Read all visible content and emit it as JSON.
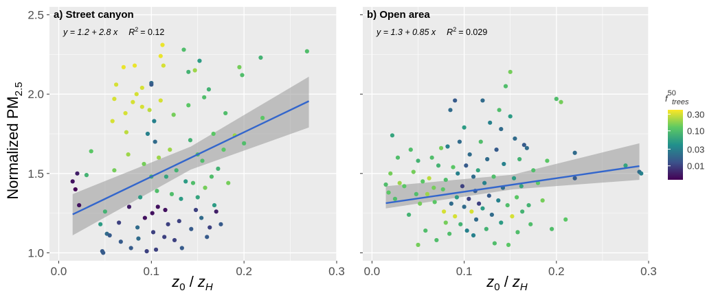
{
  "chart_data": [
    {
      "type": "scatter",
      "title": "a) Street canyon",
      "xlabel": "z0 / zH",
      "ylabel": "Normalized PM2.5",
      "xlim": [
        -0.01,
        0.3
      ],
      "ylim": [
        0.95,
        2.55
      ],
      "xticks": [
        "0.0",
        "0.1",
        "0.2",
        "0.3"
      ],
      "yticks": [
        "1.0",
        "1.5",
        "2.0",
        "2.5"
      ],
      "grid": true,
      "annotation": {
        "equation": "y = 1.2 + 2.8 x",
        "r2_label": "R",
        "r2_value": "= 0.12"
      },
      "fit": {
        "intercept": 1.2,
        "slope": 2.8,
        "x_range": [
          0.015,
          0.27
        ],
        "ci_low": [
          1.11,
          1.79
        ],
        "ci_high": [
          1.37,
          2.11
        ]
      },
      "points": [
        {
          "x": 0.015,
          "y": 1.45,
          "f": 0.005
        },
        {
          "x": 0.018,
          "y": 1.4,
          "f": 0.004
        },
        {
          "x": 0.02,
          "y": 1.5,
          "f": 0.006
        },
        {
          "x": 0.022,
          "y": 1.3,
          "f": 0.005
        },
        {
          "x": 0.03,
          "y": 1.49,
          "f": 0.08
        },
        {
          "x": 0.035,
          "y": 1.64,
          "f": 0.12
        },
        {
          "x": 0.045,
          "y": 1.18,
          "f": 0.05
        },
        {
          "x": 0.047,
          "y": 1.01,
          "f": 0.015
        },
        {
          "x": 0.048,
          "y": 1.0,
          "f": 0.015
        },
        {
          "x": 0.05,
          "y": 1.26,
          "f": 0.08
        },
        {
          "x": 0.052,
          "y": 1.12,
          "f": 0.02
        },
        {
          "x": 0.055,
          "y": 1.11,
          "f": 0.015
        },
        {
          "x": 0.058,
          "y": 1.83,
          "f": 0.3
        },
        {
          "x": 0.06,
          "y": 1.97,
          "f": 0.3
        },
        {
          "x": 0.062,
          "y": 2.06,
          "f": 0.3
        },
        {
          "x": 0.06,
          "y": 1.52,
          "f": 0.15
        },
        {
          "x": 0.065,
          "y": 1.19,
          "f": 0.01
        },
        {
          "x": 0.067,
          "y": 1.07,
          "f": 0.015
        },
        {
          "x": 0.07,
          "y": 2.17,
          "f": 0.35
        },
        {
          "x": 0.072,
          "y": 1.88,
          "f": 0.3
        },
        {
          "x": 0.073,
          "y": 1.76,
          "f": 0.25
        },
        {
          "x": 0.075,
          "y": 1.62,
          "f": 0.2
        },
        {
          "x": 0.076,
          "y": 1.29,
          "f": 0.006
        },
        {
          "x": 0.078,
          "y": 1.03,
          "f": 0.015
        },
        {
          "x": 0.08,
          "y": 1.95,
          "f": 0.3
        },
        {
          "x": 0.082,
          "y": 2.18,
          "f": 0.35
        },
        {
          "x": 0.084,
          "y": 2.0,
          "f": 0.3
        },
        {
          "x": 0.085,
          "y": 1.16,
          "f": 0.02
        },
        {
          "x": 0.086,
          "y": 1.09,
          "f": 0.02
        },
        {
          "x": 0.088,
          "y": 1.35,
          "f": 0.05
        },
        {
          "x": 0.09,
          "y": 1.92,
          "f": 0.3
        },
        {
          "x": 0.09,
          "y": 2.04,
          "f": 0.3
        },
        {
          "x": 0.092,
          "y": 1.56,
          "f": 0.15
        },
        {
          "x": 0.093,
          "y": 1.22,
          "f": 0.005
        },
        {
          "x": 0.095,
          "y": 1.01,
          "f": 0.01
        },
        {
          "x": 0.096,
          "y": 1.75,
          "f": 0.03
        },
        {
          "x": 0.098,
          "y": 1.9,
          "f": 0.25
        },
        {
          "x": 0.1,
          "y": 2.07,
          "f": 0.02
        },
        {
          "x": 0.1,
          "y": 2.06,
          "f": 0.015
        },
        {
          "x": 0.1,
          "y": 1.48,
          "f": 0.08
        },
        {
          "x": 0.101,
          "y": 1.25,
          "f": 0.005
        },
        {
          "x": 0.102,
          "y": 1.13,
          "f": 0.01
        },
        {
          "x": 0.103,
          "y": 1.83,
          "f": 0.03
        },
        {
          "x": 0.104,
          "y": 1.7,
          "f": 0.02
        },
        {
          "x": 0.105,
          "y": 1.02,
          "f": 0.01
        },
        {
          "x": 0.106,
          "y": 1.39,
          "f": 0.1
        },
        {
          "x": 0.107,
          "y": 1.29,
          "f": 0.005
        },
        {
          "x": 0.108,
          "y": 1.6,
          "f": 0.2
        },
        {
          "x": 0.11,
          "y": 2.24,
          "f": 0.35
        },
        {
          "x": 0.11,
          "y": 1.96,
          "f": 0.3
        },
        {
          "x": 0.112,
          "y": 2.31,
          "f": 0.35
        },
        {
          "x": 0.113,
          "y": 2.18,
          "f": 0.3
        },
        {
          "x": 0.114,
          "y": 1.1,
          "f": 0.01
        },
        {
          "x": 0.115,
          "y": 1.27,
          "f": 0.005
        },
        {
          "x": 0.116,
          "y": 1.48,
          "f": 0.06
        },
        {
          "x": 0.118,
          "y": 1.18,
          "f": 0.01
        },
        {
          "x": 0.12,
          "y": 1.65,
          "f": 0.2
        },
        {
          "x": 0.122,
          "y": 1.37,
          "f": 0.1
        },
        {
          "x": 0.124,
          "y": 1.87,
          "f": 0.15
        },
        {
          "x": 0.125,
          "y": 1.08,
          "f": 0.01
        },
        {
          "x": 0.127,
          "y": 1.52,
          "f": 0.08
        },
        {
          "x": 0.13,
          "y": 1.2,
          "f": 0.01
        },
        {
          "x": 0.132,
          "y": 1.34,
          "f": 0.05
        },
        {
          "x": 0.133,
          "y": 1.03,
          "f": 0.015
        },
        {
          "x": 0.135,
          "y": 2.28,
          "f": 0.1
        },
        {
          "x": 0.137,
          "y": 1.45,
          "f": 0.05
        },
        {
          "x": 0.14,
          "y": 2.14,
          "f": 0.08
        },
        {
          "x": 0.14,
          "y": 1.93,
          "f": 0.12
        },
        {
          "x": 0.142,
          "y": 1.71,
          "f": 0.08
        },
        {
          "x": 0.143,
          "y": 1.15,
          "f": 0.015
        },
        {
          "x": 0.145,
          "y": 1.44,
          "f": 0.1
        },
        {
          "x": 0.147,
          "y": 2.15,
          "f": 0.2
        },
        {
          "x": 0.148,
          "y": 1.27,
          "f": 0.01
        },
        {
          "x": 0.15,
          "y": 1.62,
          "f": 0.1
        },
        {
          "x": 0.15,
          "y": 1.35,
          "f": 0.06
        },
        {
          "x": 0.152,
          "y": 2.21,
          "f": 0.05
        },
        {
          "x": 0.154,
          "y": 1.22,
          "f": 0.02
        },
        {
          "x": 0.155,
          "y": 1.58,
          "f": 0.1
        },
        {
          "x": 0.157,
          "y": 1.98,
          "f": 0.1
        },
        {
          "x": 0.158,
          "y": 1.41,
          "f": 0.15
        },
        {
          "x": 0.16,
          "y": 1.1,
          "f": 0.015
        },
        {
          "x": 0.162,
          "y": 2.03,
          "f": 0.08
        },
        {
          "x": 0.163,
          "y": 1.16,
          "f": 0.01
        },
        {
          "x": 0.165,
          "y": 1.48,
          "f": 0.1
        },
        {
          "x": 0.167,
          "y": 1.75,
          "f": 0.12
        },
        {
          "x": 0.168,
          "y": 1.3,
          "f": 0.05
        },
        {
          "x": 0.17,
          "y": 1.26,
          "f": 0.006
        },
        {
          "x": 0.172,
          "y": 1.53,
          "f": 0.08
        },
        {
          "x": 0.175,
          "y": 1.18,
          "f": 0.015
        },
        {
          "x": 0.178,
          "y": 1.65,
          "f": 0.12
        },
        {
          "x": 0.18,
          "y": 1.88,
          "f": 0.1
        },
        {
          "x": 0.183,
          "y": 1.44,
          "f": 0.15
        },
        {
          "x": 0.19,
          "y": 1.74,
          "f": 0.2
        },
        {
          "x": 0.195,
          "y": 2.17,
          "f": 0.15
        },
        {
          "x": 0.198,
          "y": 2.12,
          "f": 0.1
        },
        {
          "x": 0.2,
          "y": 1.69,
          "f": 0.1
        },
        {
          "x": 0.218,
          "y": 2.23,
          "f": 0.08
        },
        {
          "x": 0.22,
          "y": 1.85,
          "f": 0.12
        },
        {
          "x": 0.268,
          "y": 2.27,
          "f": 0.1
        }
      ]
    },
    {
      "type": "scatter",
      "title": "b) Open area",
      "xlabel": "z0 / zH",
      "ylabel": "",
      "xlim": [
        -0.01,
        0.3
      ],
      "ylim": [
        0.95,
        2.55
      ],
      "xticks": [
        "0.0",
        "0.1",
        "0.2",
        "0.3"
      ],
      "yticks": [
        "",
        "",
        "",
        ""
      ],
      "grid": true,
      "annotation": {
        "equation": "y = 1.3 + 0.85 x",
        "r2_label": "R",
        "r2_value": "= 0.029"
      },
      "fit": {
        "intercept": 1.3,
        "slope": 0.85,
        "x_range": [
          0.015,
          0.29
        ],
        "ci_low": [
          1.28,
          1.46
        ],
        "ci_high": [
          1.42,
          1.69
        ]
      },
      "points": [
        {
          "x": 0.015,
          "y": 1.43,
          "f": 0.1
        },
        {
          "x": 0.018,
          "y": 1.38,
          "f": 0.12
        },
        {
          "x": 0.02,
          "y": 1.5,
          "f": 0.15
        },
        {
          "x": 0.022,
          "y": 1.74,
          "f": 0.06
        },
        {
          "x": 0.025,
          "y": 1.34,
          "f": 0.1
        },
        {
          "x": 0.028,
          "y": 1.6,
          "f": 0.1
        },
        {
          "x": 0.03,
          "y": 1.44,
          "f": 0.2
        },
        {
          "x": 0.035,
          "y": 1.42,
          "f": 0.12
        },
        {
          "x": 0.04,
          "y": 1.24,
          "f": 0.08
        },
        {
          "x": 0.042,
          "y": 1.65,
          "f": 0.1
        },
        {
          "x": 0.045,
          "y": 1.51,
          "f": 0.15
        },
        {
          "x": 0.048,
          "y": 1.37,
          "f": 0.1
        },
        {
          "x": 0.05,
          "y": 1.58,
          "f": 0.08
        },
        {
          "x": 0.052,
          "y": 1.31,
          "f": 0.15
        },
        {
          "x": 0.055,
          "y": 1.45,
          "f": 0.12
        },
        {
          "x": 0.058,
          "y": 1.14,
          "f": 0.1
        },
        {
          "x": 0.05,
          "y": 1.05,
          "f": 0.15
        },
        {
          "x": 0.06,
          "y": 1.37,
          "f": 0.2
        },
        {
          "x": 0.062,
          "y": 1.47,
          "f": 0.25
        },
        {
          "x": 0.065,
          "y": 1.6,
          "f": 0.1
        },
        {
          "x": 0.067,
          "y": 1.41,
          "f": 0.15
        },
        {
          "x": 0.068,
          "y": 1.32,
          "f": 0.12
        },
        {
          "x": 0.07,
          "y": 1.08,
          "f": 0.1
        },
        {
          "x": 0.072,
          "y": 1.55,
          "f": 0.08
        },
        {
          "x": 0.075,
          "y": 1.66,
          "f": 0.15
        },
        {
          "x": 0.077,
          "y": 1.4,
          "f": 0.12
        },
        {
          "x": 0.078,
          "y": 1.26,
          "f": 0.3
        },
        {
          "x": 0.08,
          "y": 1.46,
          "f": 0.1
        },
        {
          "x": 0.08,
          "y": 1.19,
          "f": 0.15
        },
        {
          "x": 0.082,
          "y": 1.67,
          "f": 0.03
        },
        {
          "x": 0.084,
          "y": 1.12,
          "f": 0.1
        },
        {
          "x": 0.085,
          "y": 1.9,
          "f": 0.02
        },
        {
          "x": 0.086,
          "y": 1.31,
          "f": 0.02
        },
        {
          "x": 0.088,
          "y": 1.54,
          "f": 0.12
        },
        {
          "x": 0.09,
          "y": 1.96,
          "f": 0.015
        },
        {
          "x": 0.09,
          "y": 1.23,
          "f": 0.3
        },
        {
          "x": 0.092,
          "y": 1.35,
          "f": 0.05
        },
        {
          "x": 0.093,
          "y": 1.5,
          "f": 0.03
        },
        {
          "x": 0.095,
          "y": 1.7,
          "f": 0.02
        },
        {
          "x": 0.096,
          "y": 1.18,
          "f": 0.08
        },
        {
          "x": 0.098,
          "y": 1.42,
          "f": 0.01
        },
        {
          "x": 0.1,
          "y": 1.29,
          "f": 0.02
        },
        {
          "x": 0.1,
          "y": 1.79,
          "f": 0.05
        },
        {
          "x": 0.102,
          "y": 1.55,
          "f": 0.015
        },
        {
          "x": 0.103,
          "y": 1.14,
          "f": 0.03
        },
        {
          "x": 0.105,
          "y": 1.34,
          "f": 0.01
        },
        {
          "x": 0.106,
          "y": 1.62,
          "f": 0.02
        },
        {
          "x": 0.108,
          "y": 1.26,
          "f": 0.3
        },
        {
          "x": 0.11,
          "y": 1.48,
          "f": 0.02
        },
        {
          "x": 0.11,
          "y": 1.11,
          "f": 0.03
        },
        {
          "x": 0.112,
          "y": 1.39,
          "f": 0.015
        },
        {
          "x": 0.113,
          "y": 1.21,
          "f": 0.02
        },
        {
          "x": 0.115,
          "y": 1.52,
          "f": 0.06
        },
        {
          "x": 0.116,
          "y": 1.31,
          "f": 0.01
        },
        {
          "x": 0.118,
          "y": 1.7,
          "f": 0.1
        },
        {
          "x": 0.12,
          "y": 1.96,
          "f": 0.02
        },
        {
          "x": 0.12,
          "y": 1.28,
          "f": 0.05
        },
        {
          "x": 0.122,
          "y": 1.44,
          "f": 0.03
        },
        {
          "x": 0.124,
          "y": 1.15,
          "f": 0.08
        },
        {
          "x": 0.125,
          "y": 1.59,
          "f": 0.02
        },
        {
          "x": 0.127,
          "y": 1.36,
          "f": 0.015
        },
        {
          "x": 0.128,
          "y": 1.82,
          "f": 0.03
        },
        {
          "x": 0.13,
          "y": 1.24,
          "f": 0.02
        },
        {
          "x": 0.132,
          "y": 1.48,
          "f": 0.1
        },
        {
          "x": 0.133,
          "y": 1.06,
          "f": 0.1
        },
        {
          "x": 0.135,
          "y": 1.65,
          "f": 0.015
        },
        {
          "x": 0.137,
          "y": 1.33,
          "f": 0.03
        },
        {
          "x": 0.138,
          "y": 1.9,
          "f": 0.1
        },
        {
          "x": 0.14,
          "y": 1.78,
          "f": 0.02
        },
        {
          "x": 0.14,
          "y": 1.19,
          "f": 0.05
        },
        {
          "x": 0.142,
          "y": 1.41,
          "f": 0.02
        },
        {
          "x": 0.143,
          "y": 1.56,
          "f": 0.03
        },
        {
          "x": 0.145,
          "y": 2.05,
          "f": 0.1
        },
        {
          "x": 0.147,
          "y": 1.3,
          "f": 0.1
        },
        {
          "x": 0.148,
          "y": 1.05,
          "f": 0.12
        },
        {
          "x": 0.15,
          "y": 1.86,
          "f": 0.05
        },
        {
          "x": 0.15,
          "y": 2.14,
          "f": 0.15
        },
        {
          "x": 0.152,
          "y": 1.23,
          "f": 0.3
        },
        {
          "x": 0.154,
          "y": 1.47,
          "f": 0.05
        },
        {
          "x": 0.155,
          "y": 1.72,
          "f": 0.02
        },
        {
          "x": 0.157,
          "y": 1.35,
          "f": 0.12
        },
        {
          "x": 0.158,
          "y": 1.13,
          "f": 0.1
        },
        {
          "x": 0.16,
          "y": 1.59,
          "f": 0.08
        },
        {
          "x": 0.162,
          "y": 1.42,
          "f": 0.06
        },
        {
          "x": 0.163,
          "y": 1.26,
          "f": 0.08
        },
        {
          "x": 0.165,
          "y": 1.68,
          "f": 0.015
        },
        {
          "x": 0.168,
          "y": 1.66,
          "f": 0.02
        },
        {
          "x": 0.17,
          "y": 1.3,
          "f": 0.08
        },
        {
          "x": 0.172,
          "y": 1.18,
          "f": 0.1
        },
        {
          "x": 0.175,
          "y": 1.52,
          "f": 0.1
        },
        {
          "x": 0.18,
          "y": 1.44,
          "f": 0.12
        },
        {
          "x": 0.185,
          "y": 1.33,
          "f": 0.15
        },
        {
          "x": 0.19,
          "y": 1.58,
          "f": 0.12
        },
        {
          "x": 0.195,
          "y": 1.15,
          "f": 0.1
        },
        {
          "x": 0.2,
          "y": 1.97,
          "f": 0.1
        },
        {
          "x": 0.205,
          "y": 1.95,
          "f": 0.15
        },
        {
          "x": 0.21,
          "y": 1.21,
          "f": 0.12
        },
        {
          "x": 0.22,
          "y": 1.63,
          "f": 0.02
        },
        {
          "x": 0.22,
          "y": 1.47,
          "f": 0.015
        },
        {
          "x": 0.275,
          "y": 1.55,
          "f": 0.06
        },
        {
          "x": 0.29,
          "y": 1.51,
          "f": 0.02
        },
        {
          "x": 0.292,
          "y": 1.5,
          "f": 0.03
        }
      ]
    }
  ],
  "legend": {
    "title_main": "f",
    "title_sup": "50",
    "title_sub": "trees",
    "labels": [
      "0.30",
      "0.10",
      "0.03",
      "0.01"
    ],
    "values": [
      0.3,
      0.1,
      0.03,
      0.01
    ],
    "range": [
      0.004,
      0.4
    ],
    "scale": "log"
  },
  "axis_title_y": {
    "main": "Normalized PM",
    "sub": "2.5"
  },
  "axis_title_x": {
    "z": "z",
    "zero": "0",
    "slash": " / ",
    "zh": "z",
    "h": "H"
  },
  "colors": {
    "panel_bg": "#ebebeb",
    "grid": "#ffffff",
    "fit_line": "#3366cc",
    "ci_band": "#999999",
    "viridis": [
      "#440154",
      "#3b528b",
      "#21908c",
      "#5dc963",
      "#fde725"
    ]
  }
}
